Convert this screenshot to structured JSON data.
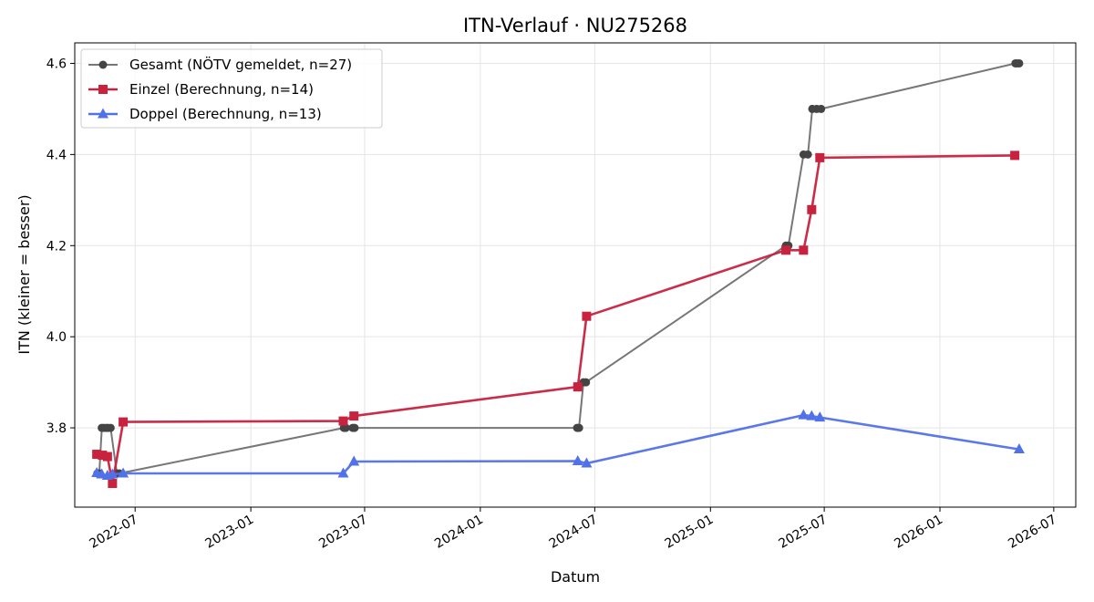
{
  "chart_data": {
    "type": "line",
    "title": "ITN-Verlauf · NU275268",
    "xlabel": "Datum",
    "ylabel": "ITN  (kleiner = besser)",
    "x_type": "date",
    "xlim": [
      "2022-03-27",
      "2026-08-05"
    ],
    "ylim": [
      3.626,
      4.645
    ],
    "x_ticks": [
      "2022-07-01",
      "2023-01-01",
      "2023-07-01",
      "2024-01-01",
      "2024-07-01",
      "2025-01-01",
      "2025-07-01",
      "2026-01-01",
      "2026-07-01"
    ],
    "x_tick_labels": [
      "2022-07",
      "2023-01",
      "2023-07",
      "2024-01",
      "2024-07",
      "2025-01",
      "2025-07",
      "2026-01",
      "2026-07"
    ],
    "y_ticks": [
      3.8,
      4.0,
      4.2,
      4.4,
      4.6
    ],
    "y_tick_labels": [
      "3.8",
      "4.0",
      "4.2",
      "4.4",
      "4.6"
    ],
    "grid": true,
    "legend_position": "upper-left",
    "series": [
      {
        "name": "Gesamt (NÖTV gemeldet, n=27)",
        "color": "#777777",
        "marker_color": "#444444",
        "marker": "circle",
        "x": [
          "2022-05-02",
          "2022-05-05",
          "2022-05-09",
          "2022-05-12",
          "2022-05-16",
          "2022-05-19",
          "2022-05-23",
          "2022-06-02",
          "2022-06-06",
          "2023-05-29",
          "2023-06-01",
          "2023-06-12",
          "2023-06-15",
          "2024-06-03",
          "2024-06-06",
          "2024-06-13",
          "2024-06-17",
          "2025-05-01",
          "2025-05-05",
          "2025-05-29",
          "2025-06-05",
          "2025-06-12",
          "2025-06-19",
          "2025-06-26",
          "2026-05-01",
          "2026-05-04",
          "2026-05-07"
        ],
        "values": [
          3.7,
          3.7,
          3.8,
          3.8,
          3.8,
          3.8,
          3.8,
          3.7,
          3.7,
          3.8,
          3.8,
          3.8,
          3.8,
          3.8,
          3.8,
          3.9,
          3.9,
          4.2,
          4.2,
          4.4,
          4.4,
          4.5,
          4.5,
          4.5,
          4.6,
          4.6,
          4.6
        ]
      },
      {
        "name": "Einzel (Berechnung, n=14)",
        "color": "#c8223f",
        "marker": "square",
        "x": [
          "2022-05-01",
          "2022-05-10",
          "2022-05-18",
          "2022-05-26",
          "2022-06-12",
          "2023-05-28",
          "2023-06-14",
          "2024-06-04",
          "2024-06-18",
          "2025-05-01",
          "2025-05-29",
          "2025-06-11",
          "2025-06-24",
          "2026-04-30"
        ],
        "values": [
          3.742,
          3.74,
          3.737,
          3.678,
          3.813,
          3.815,
          3.826,
          3.89,
          4.045,
          4.19,
          4.19,
          4.279,
          4.393,
          4.398
        ]
      },
      {
        "name": "Doppel (Berechnung, n=13)",
        "color": "#5171e8",
        "marker": "triangle",
        "x": [
          "2022-05-01",
          "2022-05-09",
          "2022-05-18",
          "2022-05-26",
          "2022-06-12",
          "2023-05-28",
          "2023-06-14",
          "2024-06-04",
          "2024-06-18",
          "2025-05-29",
          "2025-06-11",
          "2025-06-24",
          "2026-05-07"
        ],
        "values": [
          3.701,
          3.698,
          3.695,
          3.698,
          3.7,
          3.7,
          3.726,
          3.727,
          3.722,
          3.828,
          3.826,
          3.823,
          3.753
        ]
      }
    ]
  }
}
